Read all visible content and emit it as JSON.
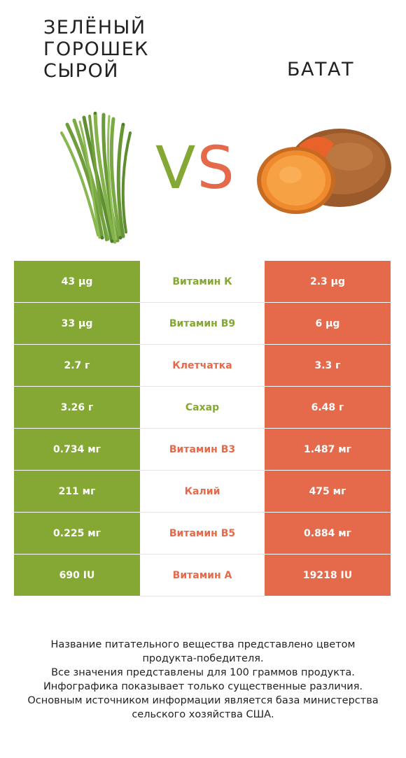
{
  "header": {
    "left_title": "ЗЕЛЁНЫЙ ГОРОШЕК СЫРОЙ",
    "right_title": "БАТАТ",
    "vs_v": "V",
    "vs_s": "S"
  },
  "images": {
    "left": "green-beans-image",
    "right": "sweet-potato-image"
  },
  "colors": {
    "left_winner": "#84a833",
    "right_winner": "#e5694b"
  },
  "rows": [
    {
      "left": "43 µg",
      "nutrient": "Витамин К",
      "right": "2.3 µg",
      "winner": "left"
    },
    {
      "left": "33 µg",
      "nutrient": "Витамин B9",
      "right": "6 µg",
      "winner": "left"
    },
    {
      "left": "2.7 г",
      "nutrient": "Клетчатка",
      "right": "3.3 г",
      "winner": "right"
    },
    {
      "left": "3.26 г",
      "nutrient": "Сахар",
      "right": "6.48 г",
      "winner": "left"
    },
    {
      "left": "0.734 мг",
      "nutrient": "Витамин B3",
      "right": "1.487 мг",
      "winner": "right"
    },
    {
      "left": "211 мг",
      "nutrient": "Калий",
      "right": "475 мг",
      "winner": "right"
    },
    {
      "left": "0.225 мг",
      "nutrient": "Витамин B5",
      "right": "0.884 мг",
      "winner": "right"
    },
    {
      "left": "690 IU",
      "nutrient": "Витамин A",
      "right": "19218 IU",
      "winner": "right"
    }
  ],
  "footer": {
    "line1": "Название питательного вещества представлено цветом",
    "line2": "продукта-победителя.",
    "line3": "Все значения представлены для 100 граммов продукта.",
    "line4": "Инфографика показывает только существенные различия.",
    "line5": "Основным источником информации является база министерства",
    "line6": "сельского хозяйства США."
  }
}
